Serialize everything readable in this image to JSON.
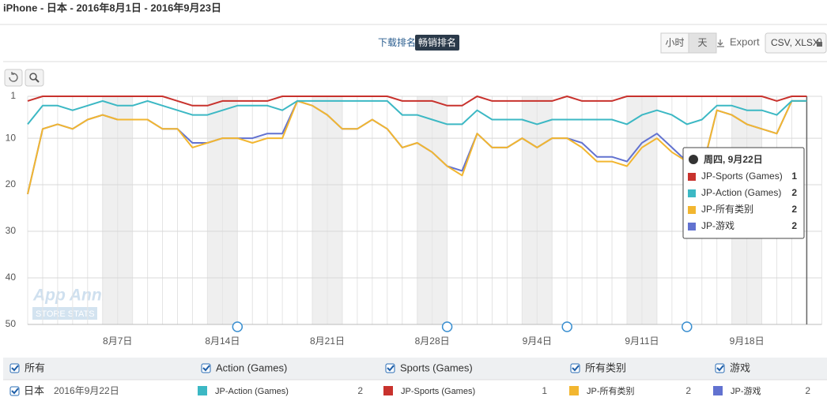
{
  "header": {
    "title": "iPhone - 日本 - 2016年8月1日 - 2016年9月23日"
  },
  "tabs": [
    "下载排名",
    "畅销排名"
  ],
  "active_tab": 1,
  "granularity": [
    "小时",
    "天"
  ],
  "active_granularity": 1,
  "export": "Export",
  "formats": "CSV, XLSX",
  "watermark": [
    "App Annie",
    "STORE STATS"
  ],
  "chart_data": {
    "type": "line",
    "categories": [
      null,
      null,
      null,
      null,
      null,
      null,
      "8月7日",
      null,
      null,
      null,
      null,
      null,
      null,
      "8月14日",
      null,
      null,
      null,
      null,
      null,
      null,
      "8月21日",
      null,
      null,
      null,
      null,
      null,
      null,
      "8月28日",
      null,
      null,
      null,
      null,
      null,
      null,
      "9月4日",
      null,
      null,
      null,
      null,
      null,
      null,
      "9月11日",
      null,
      null,
      null,
      null,
      null,
      null,
      "9月18日",
      null,
      null,
      null,
      null,
      null
    ],
    "ylim": [
      50,
      1
    ],
    "yticks": [
      1,
      10,
      20,
      30,
      40,
      50
    ],
    "grid": true,
    "series": [
      {
        "name": "JP-Sports (Games)",
        "color": "#c8322d",
        "values": [
          2,
          1,
          1,
          1,
          1,
          1,
          1,
          1,
          1,
          1,
          2,
          3,
          3,
          2,
          2,
          2,
          2,
          1,
          1,
          1,
          1,
          1,
          1,
          1,
          1,
          2,
          2,
          2,
          3,
          3,
          1,
          2,
          2,
          2,
          2,
          2,
          1,
          2,
          2,
          2,
          1,
          1,
          1,
          1,
          1,
          1,
          1,
          1,
          1,
          1,
          2,
          1,
          1,
          null
        ]
      },
      {
        "name": "JP-Action (Games)",
        "color": "#3cb8c4",
        "values": [
          7,
          3,
          3,
          4,
          3,
          2,
          3,
          3,
          2,
          3,
          4,
          5,
          5,
          4,
          3,
          3,
          3,
          4,
          2,
          2,
          2,
          2,
          2,
          2,
          2,
          5,
          5,
          6,
          7,
          7,
          4,
          6,
          6,
          6,
          7,
          6,
          6,
          6,
          6,
          6,
          7,
          5,
          4,
          5,
          7,
          6,
          3,
          3,
          4,
          4,
          5,
          2,
          2,
          null
        ]
      },
      {
        "name": "JP-所有类别",
        "color": "#f2b630",
        "values": [
          22,
          8,
          7,
          8,
          6,
          5,
          6,
          6,
          6,
          8,
          8,
          12,
          11,
          10,
          10,
          11,
          10,
          10,
          2,
          3,
          5,
          8,
          8,
          6,
          8,
          12,
          11,
          13,
          16,
          18,
          9,
          12,
          12,
          10,
          12,
          10,
          10,
          12,
          15,
          15,
          16,
          12,
          10,
          13,
          15,
          17,
          4,
          5,
          7,
          8,
          9,
          2,
          2,
          null
        ]
      },
      {
        "name": "JP-游戏",
        "color": "#6272d0",
        "values": [
          22,
          8,
          7,
          8,
          6,
          5,
          6,
          6,
          6,
          8,
          8,
          11,
          11,
          10,
          10,
          10,
          9,
          9,
          2,
          3,
          5,
          8,
          8,
          6,
          8,
          12,
          11,
          13,
          16,
          17,
          9,
          12,
          12,
          10,
          12,
          10,
          10,
          11,
          14,
          14,
          15,
          11,
          9,
          12,
          15,
          17,
          4,
          5,
          7,
          8,
          9,
          2,
          2,
          null
        ]
      }
    ],
    "tooltip": {
      "title": "周四, 9月22日"
    }
  },
  "filters": [
    "所有",
    "Action (Games)",
    "Sports (Games)",
    "所有类别",
    "游戏"
  ],
  "summary": {
    "country": "日本",
    "date": "2016年9月22日"
  }
}
